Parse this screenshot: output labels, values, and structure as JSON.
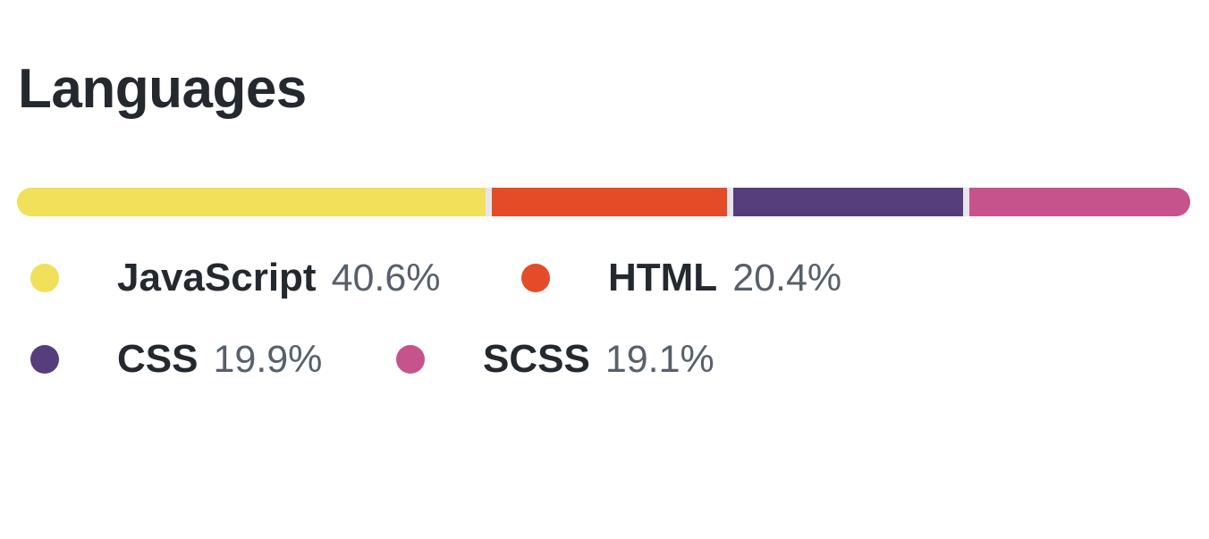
{
  "header": {
    "title": "Languages"
  },
  "languages": [
    {
      "name": "JavaScript",
      "percent_label": "40.6%",
      "percent": 40.6,
      "color": "#f1e05a"
    },
    {
      "name": "HTML",
      "percent_label": "20.4%",
      "percent": 20.4,
      "color": "#e34c26"
    },
    {
      "name": "CSS",
      "percent_label": "19.9%",
      "percent": 19.9,
      "color": "#563d7c"
    },
    {
      "name": "SCSS",
      "percent_label": "19.1%",
      "percent": 19.1,
      "color": "#c6538c"
    }
  ]
}
